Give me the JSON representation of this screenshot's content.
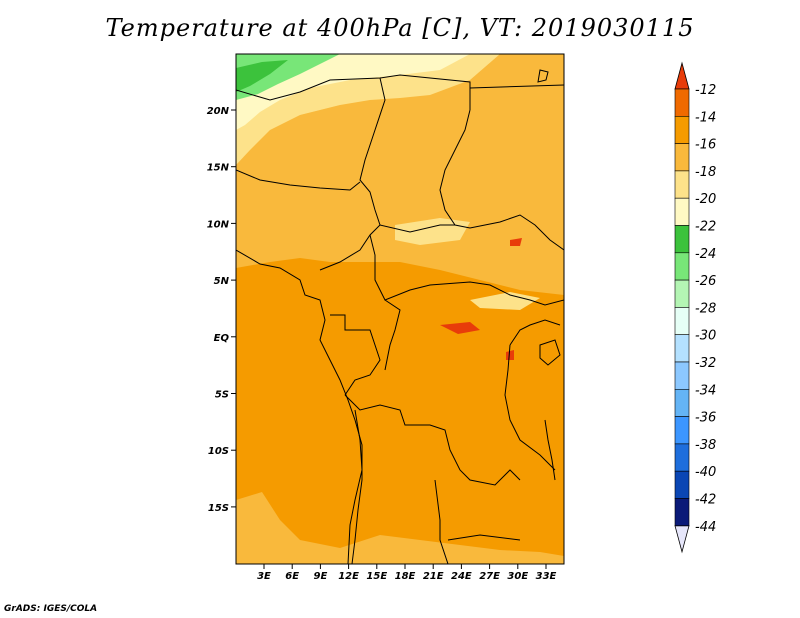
{
  "title": "Temperature at 400hPa [C], VT: 2019030115",
  "credit": "GrADS: IGES/COLA",
  "map": {
    "lat_labels": [
      "20N",
      "15N",
      "10N",
      "5N",
      "EQ",
      "5S",
      "10S",
      "15S"
    ],
    "lon_labels": [
      "3E",
      "6E",
      "9E",
      "12E",
      "15E",
      "18E",
      "21E",
      "24E",
      "27E",
      "30E",
      "33E"
    ]
  },
  "colorbar": {
    "labels": [
      "-12",
      "-14",
      "-16",
      "-18",
      "-20",
      "-22",
      "-24",
      "-26",
      "-28",
      "-30",
      "-32",
      "-34",
      "-36",
      "-38",
      "-40",
      "-42",
      "-44"
    ],
    "colors": [
      "#e83c0a",
      "#f06a00",
      "#f59b00",
      "#f9b93c",
      "#fde28a",
      "#fff9c4",
      "#3cc23c",
      "#78e678",
      "#b4f5b4",
      "#e6fff6",
      "#b4e1ff",
      "#8cc8ff",
      "#64b4f5",
      "#3c96ff",
      "#1e6edc",
      "#0a46b4",
      "#0a1a78"
    ],
    "over_color": "#e83c0a",
    "under_color": "#e6e6fa"
  }
}
